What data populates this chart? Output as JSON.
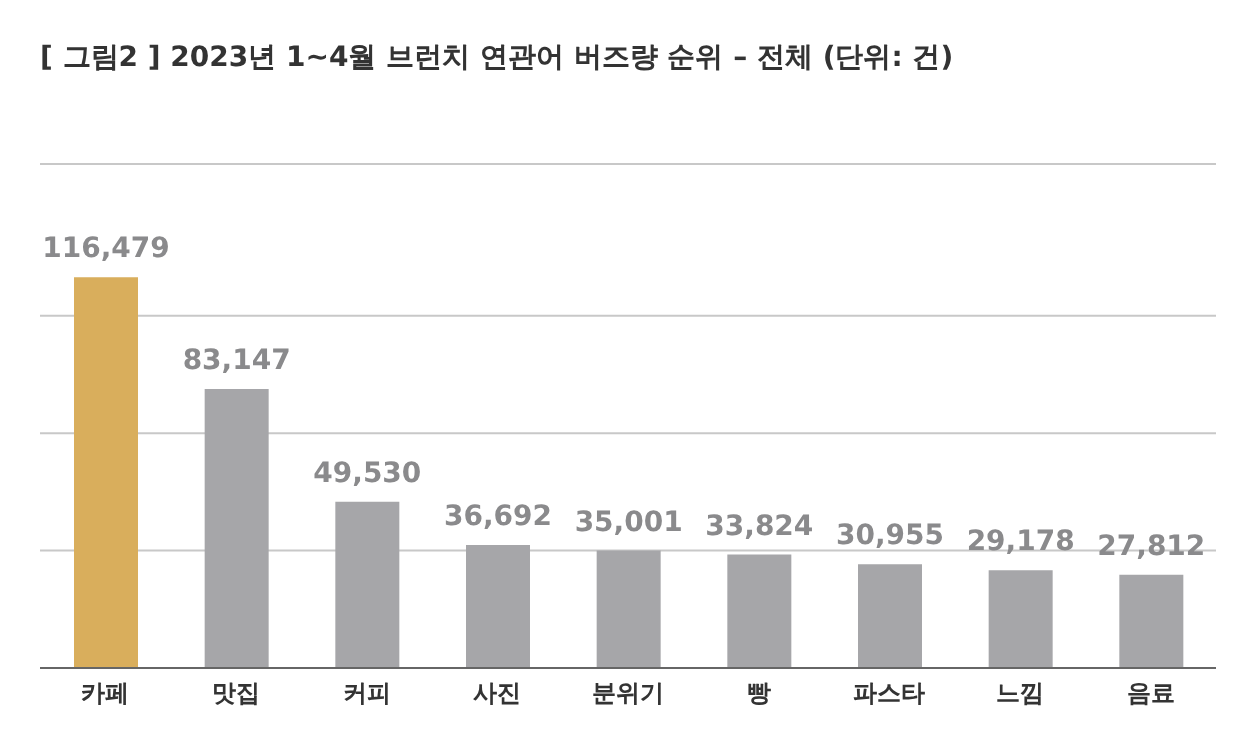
{
  "chart_data": {
    "type": "bar",
    "title": "[ 그림2 ] 2023년 1~4월 브런치 연관어 버즈량 순위 – 전체 (단위: 건)",
    "categories": [
      "카페",
      "맛집",
      "커피",
      "사진",
      "분위기",
      "빵",
      "파스타",
      "느낌",
      "음료"
    ],
    "values": [
      116479,
      83147,
      49530,
      36692,
      35001,
      33824,
      30955,
      29178,
      27812
    ],
    "value_labels": [
      "116,479",
      "83,147",
      "49,530",
      "36,692",
      "35,001",
      "33,824",
      "30,955",
      "29,178",
      "27,812"
    ],
    "colors": [
      "#d9ae5c",
      "#a6a6a9",
      "#a6a6a9",
      "#a6a6a9",
      "#a6a6a9",
      "#a6a6a9",
      "#a6a6a9",
      "#a6a6a9",
      "#a6a6a9"
    ],
    "grid": "y",
    "tick_labels": "x"
  }
}
